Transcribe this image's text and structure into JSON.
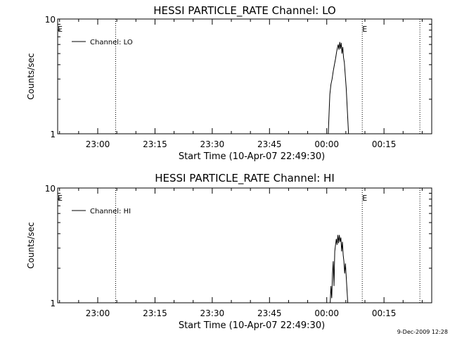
{
  "footer": {
    "timestamp": "9-Dec-2009 12:28"
  },
  "chart_data": [
    {
      "type": "line",
      "title": "HESSI PARTICLE_RATE Channel: LO",
      "xlabel": "Start Time (10-Apr-07 22:49:30)",
      "ylabel": "Counts/sec",
      "xlim": [
        0,
        98.0
      ],
      "x_unit": "minutes after 22:49:30",
      "xticks": [
        {
          "x": 10.5,
          "label": "23:00"
        },
        {
          "x": 25.5,
          "label": "23:15"
        },
        {
          "x": 40.5,
          "label": "23:30"
        },
        {
          "x": 55.5,
          "label": "23:45"
        },
        {
          "x": 70.5,
          "label": "00:00"
        },
        {
          "x": 85.5,
          "label": "00:15"
        }
      ],
      "yscale": "log",
      "ylim": [
        1,
        10
      ],
      "ytick_labels": [
        "1",
        "10"
      ],
      "legend": {
        "position": "top-left",
        "entries": [
          "Channel: LO"
        ]
      },
      "markers": [
        {
          "x": 0.0,
          "style": "dotted",
          "label": "E"
        },
        {
          "x": 15.2,
          "style": "dotted",
          "label": ""
        },
        {
          "x": 79.8,
          "style": "dotted",
          "label": "E"
        },
        {
          "x": 94.9,
          "style": "dotted",
          "label": ""
        }
      ],
      "series": [
        {
          "name": "Channel: LO",
          "x": [
            70.9,
            71.1,
            71.3,
            71.6,
            71.9,
            72.2,
            72.5,
            72.8,
            73.1,
            73.3,
            73.5,
            73.7,
            73.9,
            74.1,
            74.3,
            74.5,
            74.7,
            74.9,
            75.1,
            75.3,
            75.6,
            75.9,
            76.2
          ],
          "y": [
            1.0,
            1.5,
            2.2,
            2.7,
            3.0,
            3.5,
            4.0,
            4.5,
            5.2,
            5.6,
            6.0,
            5.4,
            6.3,
            5.5,
            6.2,
            5.0,
            5.7,
            4.6,
            4.2,
            3.4,
            2.5,
            1.6,
            1.0
          ]
        }
      ]
    },
    {
      "type": "line",
      "title": "HESSI PARTICLE_RATE Channel: HI",
      "xlabel": "Start Time (10-Apr-07 22:49:30)",
      "ylabel": "Counts/sec",
      "xlim": [
        0,
        98.0
      ],
      "x_unit": "minutes after 22:49:30",
      "xticks": [
        {
          "x": 10.5,
          "label": "23:00"
        },
        {
          "x": 25.5,
          "label": "23:15"
        },
        {
          "x": 40.5,
          "label": "23:30"
        },
        {
          "x": 55.5,
          "label": "23:45"
        },
        {
          "x": 70.5,
          "label": "00:00"
        },
        {
          "x": 85.5,
          "label": "00:15"
        }
      ],
      "yscale": "log",
      "ylim": [
        1,
        10
      ],
      "ytick_labels": [
        "1",
        "10"
      ],
      "legend": {
        "position": "top-left",
        "entries": [
          "Channel: HI"
        ]
      },
      "markers": [
        {
          "x": 0.0,
          "style": "dotted",
          "label": "E"
        },
        {
          "x": 15.2,
          "style": "dotted",
          "label": ""
        },
        {
          "x": 79.8,
          "style": "dotted",
          "label": "E"
        },
        {
          "x": 94.9,
          "style": "dotted",
          "label": ""
        }
      ],
      "series": [
        {
          "name": "Channel: HI",
          "x": [
            71.4,
            71.6,
            71.8,
            72.0,
            72.2,
            72.4,
            72.6,
            72.8,
            73.0,
            73.2,
            73.4,
            73.6,
            73.8,
            74.0,
            74.2,
            74.4,
            74.6,
            74.8,
            75.0,
            75.2,
            75.4,
            75.7,
            76.0
          ],
          "y": [
            1.0,
            1.4,
            1.1,
            1.8,
            2.3,
            1.4,
            2.8,
            3.2,
            3.6,
            3.2,
            3.9,
            3.3,
            3.9,
            3.4,
            3.7,
            2.8,
            3.4,
            2.6,
            2.3,
            1.8,
            2.2,
            1.5,
            1.0
          ]
        }
      ]
    }
  ]
}
